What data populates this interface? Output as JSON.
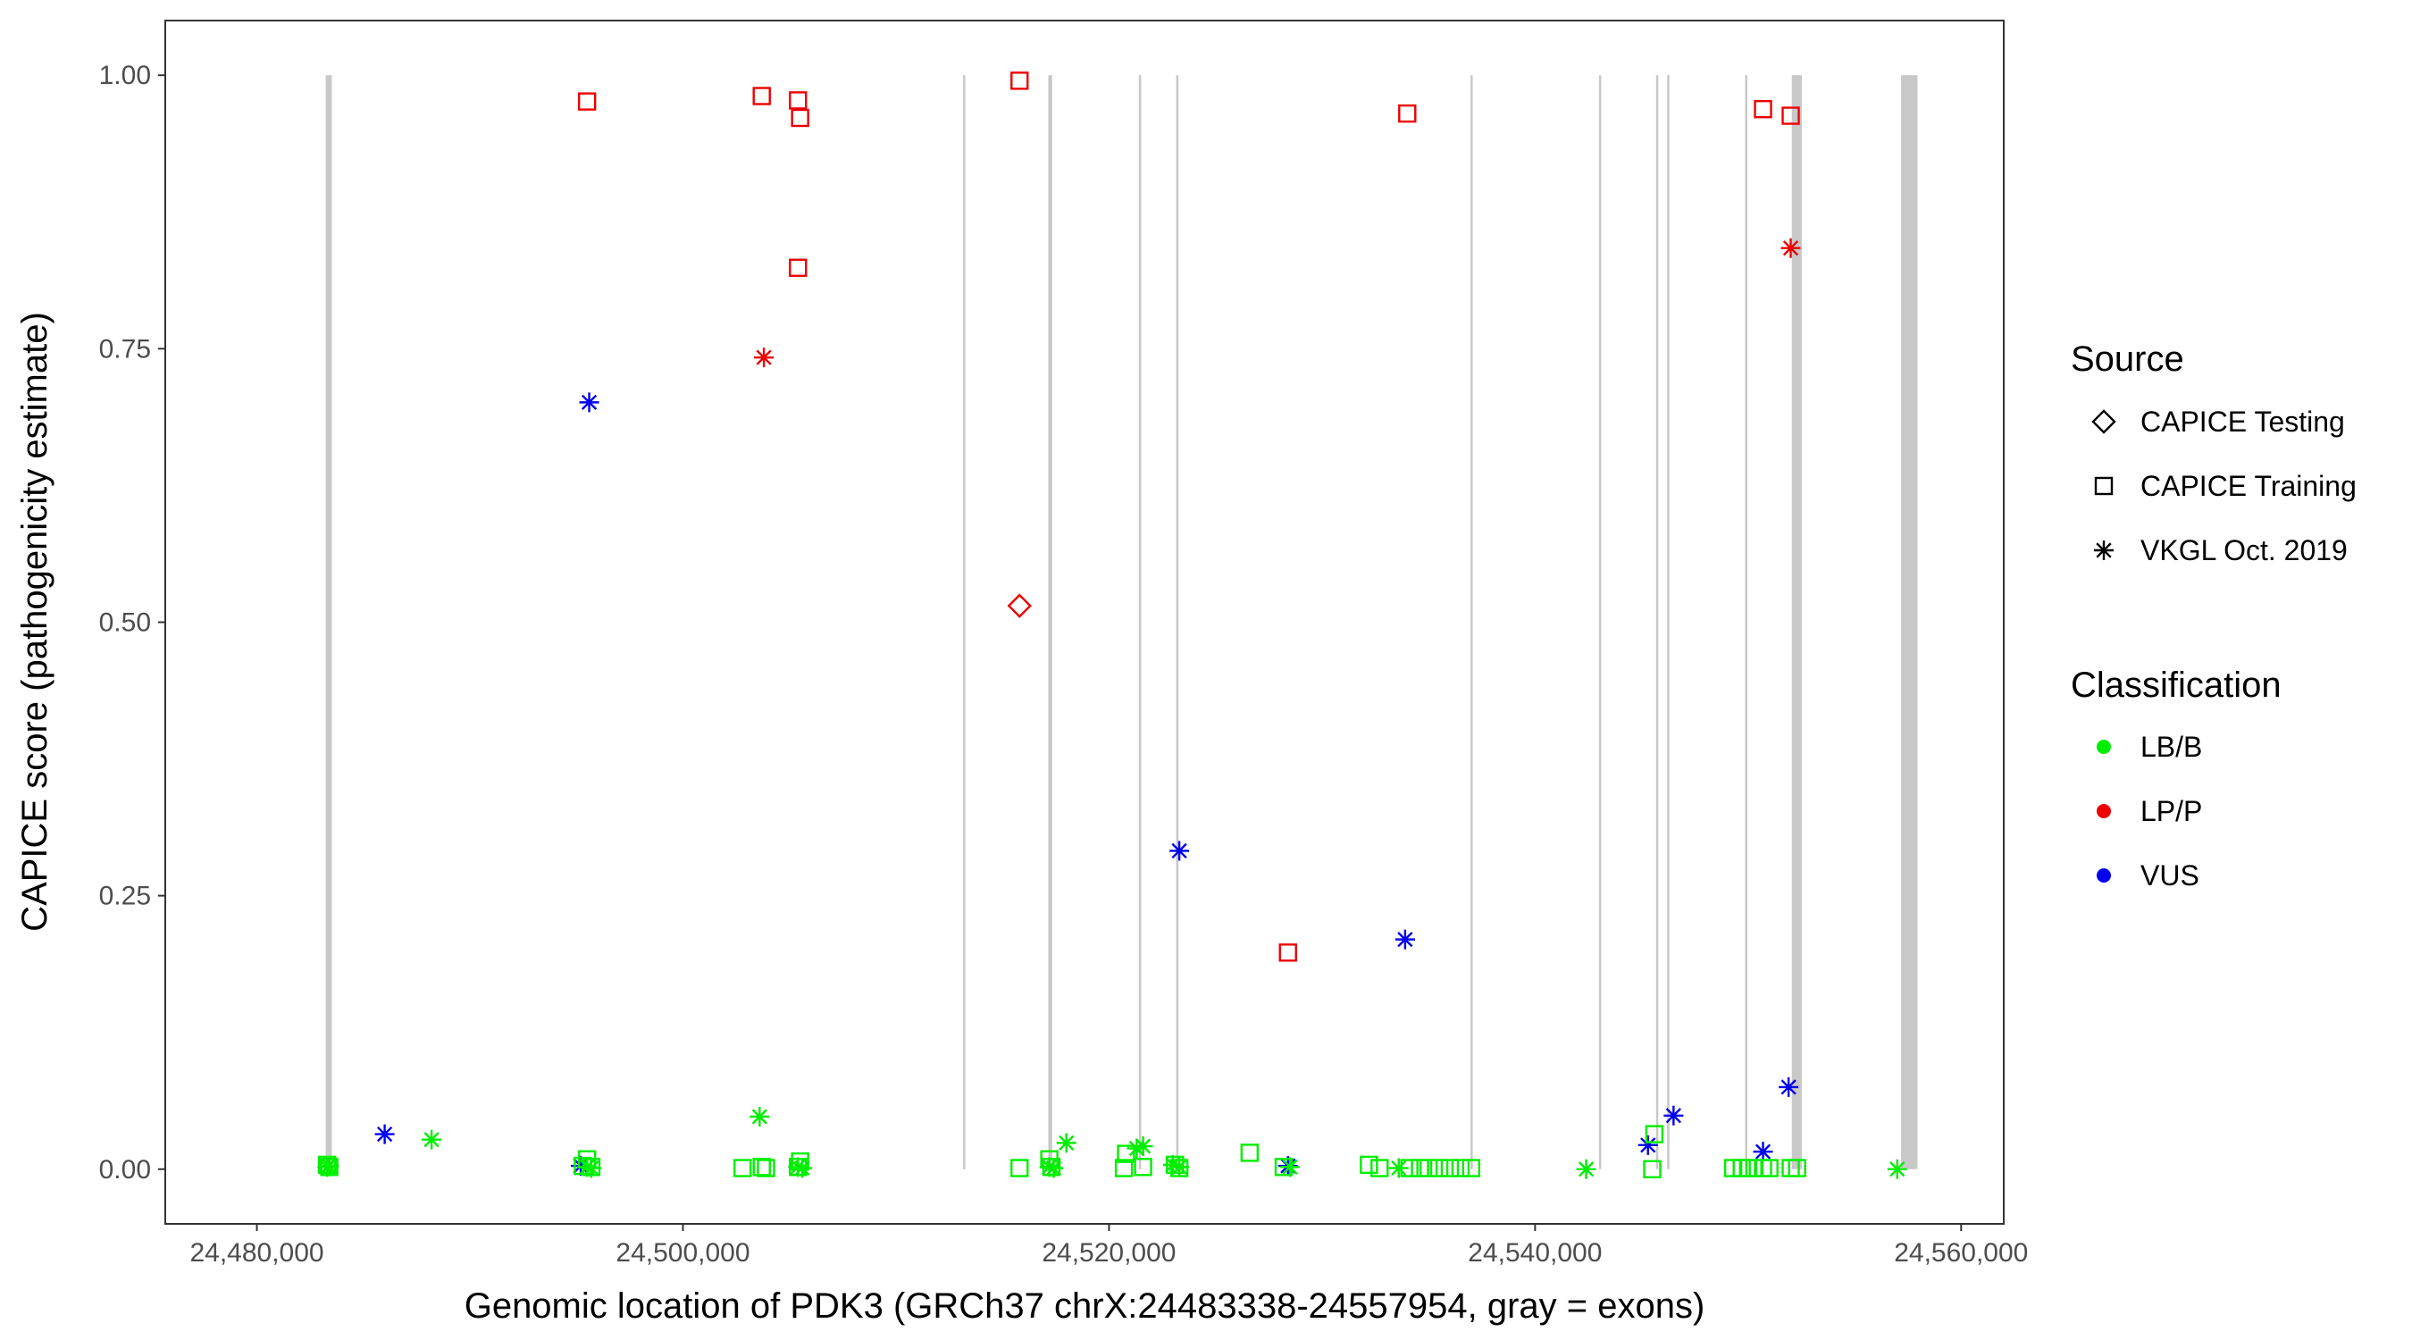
{
  "chart_data": {
    "type": "scatter",
    "xlabel": "Genomic location of PDK3 (GRCh37 chrX:24483338-24557954, gray = exons)",
    "ylabel": "CAPICE score (pathogenicity estimate)",
    "xlim": [
      24475700,
      24562000
    ],
    "ylim": [
      -0.05,
      1.05
    ],
    "x_ticks": [
      24480000,
      24500000,
      24520000,
      24540000,
      24560000
    ],
    "x_tick_labels": [
      "24,480,000",
      "24,500,000",
      "24,520,000",
      "24,540,000",
      "24,560,000"
    ],
    "y_ticks": [
      0,
      0.25,
      0.5,
      0.75,
      1
    ],
    "y_tick_labels": [
      "0.00",
      "0.25",
      "0.50",
      "0.75",
      "1.00"
    ],
    "grid": false,
    "exon_color": "#c8c8c8",
    "exons": [
      [
        24483230,
        24483520
      ],
      [
        24513150,
        24513240
      ],
      [
        24517150,
        24517330
      ],
      [
        24521400,
        24521510
      ],
      [
        24523150,
        24523260
      ],
      [
        24536970,
        24537040
      ],
      [
        24543000,
        24543060
      ],
      [
        24545680,
        24545760
      ],
      [
        24546200,
        24546270
      ],
      [
        24549860,
        24549930
      ],
      [
        24552050,
        24552520
      ],
      [
        24557180,
        24557950
      ]
    ],
    "legend": {
      "position": "right",
      "source_title": "Source",
      "source_items": [
        {
          "label": "CAPICE Testing",
          "shape": "diamond"
        },
        {
          "label": "CAPICE Training",
          "shape": "square"
        },
        {
          "label": "VKGL Oct. 2019",
          "shape": "asterisk"
        }
      ],
      "classification_title": "Classification",
      "classification_items": [
        {
          "label": "LB/B",
          "color": "#00ee00"
        },
        {
          "label": "LP/P",
          "color": "#ee0000"
        },
        {
          "label": "VUS",
          "color": "#0000ee"
        }
      ]
    },
    "series": [
      {
        "source": "CAPICE Testing",
        "classification": "LP/P",
        "points": [
          [
            24515800,
            0.515
          ]
        ]
      },
      {
        "source": "CAPICE Training",
        "classification": "LP/P",
        "points": [
          [
            24495500,
            0.976
          ],
          [
            24503700,
            0.981
          ],
          [
            24505400,
            0.977
          ],
          [
            24505500,
            0.961
          ],
          [
            24505400,
            0.824
          ],
          [
            24515800,
            0.995
          ],
          [
            24534000,
            0.965
          ],
          [
            24528400,
            0.198
          ],
          [
            24550700,
            0.969
          ],
          [
            24552000,
            0.963
          ]
        ]
      },
      {
        "source": "VKGL Oct. 2019",
        "classification": "LP/P",
        "points": [
          [
            24503800,
            0.742
          ],
          [
            24552000,
            0.842
          ]
        ]
      },
      {
        "source": "VKGL Oct. 2019",
        "classification": "VUS",
        "points": [
          [
            24495600,
            0.701
          ],
          [
            24486000,
            0.032
          ],
          [
            24495200,
            0.003
          ],
          [
            24523300,
            0.291
          ],
          [
            24528400,
            0.003
          ],
          [
            24533900,
            0.21
          ],
          [
            24545300,
            0.022
          ],
          [
            24546500,
            0.049
          ],
          [
            24550700,
            0.016
          ],
          [
            24551900,
            0.075
          ]
        ]
      },
      {
        "source": "VKGL Oct. 2019",
        "classification": "LB/B",
        "points": [
          [
            24483300,
            0.002
          ],
          [
            24483400,
            0.003
          ],
          [
            24488200,
            0.027
          ],
          [
            24495500,
            0.002
          ],
          [
            24495700,
            0.001
          ],
          [
            24503600,
            0.048
          ],
          [
            24505400,
            0.002
          ],
          [
            24505600,
            0.001
          ],
          [
            24517200,
            0.002
          ],
          [
            24517400,
            0.001
          ],
          [
            24518000,
            0.024
          ],
          [
            24521300,
            0.019
          ],
          [
            24521600,
            0.021
          ],
          [
            24523000,
            0.004
          ],
          [
            24523300,
            0.002
          ],
          [
            24528500,
            0.002
          ],
          [
            24533600,
            0.001
          ],
          [
            24542400,
            0.0
          ],
          [
            24557000,
            0.0
          ]
        ]
      },
      {
        "source": "CAPICE Training",
        "classification": "LB/B",
        "points": [
          [
            24483300,
            0.004
          ],
          [
            24483400,
            0.002
          ],
          [
            24495300,
            0.003
          ],
          [
            24495500,
            0.009
          ],
          [
            24495700,
            0.002
          ],
          [
            24502800,
            0.001
          ],
          [
            24503700,
            0.002
          ],
          [
            24503900,
            0.001
          ],
          [
            24505500,
            0.007
          ],
          [
            24505400,
            0.002
          ],
          [
            24515800,
            0.001
          ],
          [
            24517200,
            0.009
          ],
          [
            24517300,
            0.002
          ],
          [
            24520800,
            0.014
          ],
          [
            24520700,
            0.001
          ],
          [
            24521600,
            0.002
          ],
          [
            24523100,
            0.004
          ],
          [
            24523300,
            0.001
          ],
          [
            24526600,
            0.015
          ],
          [
            24528200,
            0.002
          ],
          [
            24532200,
            0.004
          ],
          [
            24532700,
            0.001
          ],
          [
            24534100,
            0.001
          ],
          [
            24534600,
            0.001
          ],
          [
            24535000,
            0.001
          ],
          [
            24535500,
            0.001
          ],
          [
            24536000,
            0.001
          ],
          [
            24536500,
            0.001
          ],
          [
            24537000,
            0.001
          ],
          [
            24545600,
            0.032
          ],
          [
            24545500,
            0.0
          ],
          [
            24549300,
            0.001
          ],
          [
            24549700,
            0.001
          ],
          [
            24550000,
            0.001
          ],
          [
            24550300,
            0.001
          ],
          [
            24550700,
            0.001
          ],
          [
            24551000,
            0.001
          ],
          [
            24552000,
            0.001
          ],
          [
            24552300,
            0.001
          ]
        ]
      }
    ]
  }
}
